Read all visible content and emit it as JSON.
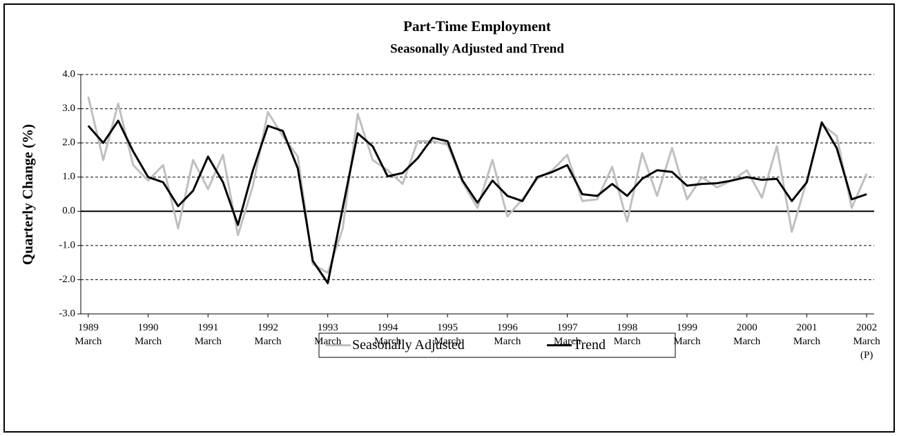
{
  "chart_data": {
    "type": "line",
    "title": "Part-Time Employment",
    "subtitle": "Seasonally Adjusted and Trend",
    "y_label": "Quarterly Change (%)",
    "categories": [
      "1989\nMarch",
      null,
      null,
      null,
      "1990\nMarch",
      null,
      null,
      null,
      "1991\nMarch",
      null,
      null,
      null,
      "1992\nMarch",
      null,
      null,
      null,
      "1993\nMarch",
      null,
      null,
      null,
      "1994\nMarch",
      null,
      null,
      null,
      "1995\nMarch",
      null,
      null,
      null,
      "1996\nMarch",
      null,
      null,
      null,
      "1997\nMarch",
      null,
      null,
      null,
      "1998\nMarch",
      null,
      null,
      null,
      "1999\nMarch",
      null,
      null,
      null,
      "2000\nMarch",
      null,
      null,
      null,
      "2001\nMarch",
      null,
      null,
      null,
      "2002\nMarch\n(P)"
    ],
    "series": [
      {
        "name": "Seasonally Adjusted",
        "color": "#bfbfbf",
        "values": [
          3.35,
          1.5,
          3.15,
          1.35,
          0.9,
          1.35,
          -0.5,
          1.5,
          0.65,
          1.65,
          -0.7,
          0.75,
          2.9,
          2.2,
          1.6,
          -1.55,
          -1.8,
          -0.5,
          2.85,
          1.5,
          1.2,
          0.8,
          2.05,
          2.05,
          1.95,
          0.85,
          0.1,
          1.5,
          -0.15,
          0.35,
          0.95,
          1.2,
          1.65,
          0.3,
          0.35,
          1.3,
          -0.3,
          1.7,
          0.45,
          1.85,
          0.35,
          1.0,
          0.7,
          0.9,
          1.2,
          0.4,
          1.9,
          -0.6,
          0.9,
          2.55,
          2.2,
          0.1,
          1.1
        ]
      },
      {
        "name": "Trend",
        "color": "#000000",
        "values": [
          2.5,
          2.0,
          2.65,
          1.75,
          1.0,
          0.85,
          0.15,
          0.6,
          1.6,
          0.85,
          -0.4,
          1.2,
          2.5,
          2.35,
          1.25,
          -1.45,
          -2.1,
          0.1,
          2.28,
          1.9,
          1.02,
          1.12,
          1.55,
          2.15,
          2.05,
          0.9,
          0.25,
          0.9,
          0.45,
          0.3,
          1.0,
          1.15,
          1.35,
          0.5,
          0.45,
          0.8,
          0.45,
          0.95,
          1.2,
          1.15,
          0.75,
          0.8,
          0.82,
          0.9,
          1.0,
          0.92,
          0.95,
          0.3,
          0.85,
          2.6,
          1.85,
          0.35,
          0.5
        ]
      }
    ],
    "ylim": [
      -3,
      4
    ],
    "yticks": [
      {
        "value": -3,
        "label": "-3.0"
      },
      {
        "value": -2,
        "label": "-2.0"
      },
      {
        "value": -1,
        "label": "-1.0"
      },
      {
        "value": 0,
        "label": "0.0"
      },
      {
        "value": 1,
        "label": "1.0"
      },
      {
        "value": 2,
        "label": "2.0"
      },
      {
        "value": 3,
        "label": "3.0"
      },
      {
        "value": 4,
        "label": "4.0"
      }
    ],
    "grid": true,
    "legend": "bottom"
  }
}
